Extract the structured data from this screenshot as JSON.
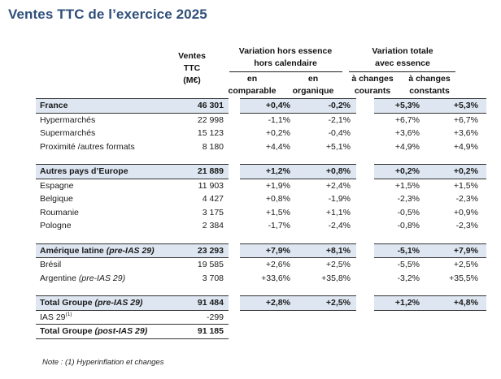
{
  "title": "Ventes TTC de l’exercice 2025",
  "header": {
    "sales_l1": "Ventes",
    "sales_l2": "TTC",
    "sales_l3": "(M€)",
    "group1_l1": "Variation hors essence",
    "group1_l2": "hors calendaire",
    "group2_l1": "Variation totale",
    "group2_l2": "avec essence",
    "col1_l1": "en",
    "col1_l2": "comparable",
    "col2_l1": "en",
    "col2_l2": "organique",
    "col3_l1": "à changes",
    "col3_l2": "courants",
    "col4_l1": "à changes",
    "col4_l2": "constants"
  },
  "rows": [
    {
      "label": "France",
      "label_note": "",
      "sales": "46 301",
      "v1": "+0,4%",
      "v2": "-0,2%",
      "v3": "+5,3%",
      "v4": "+5,3%"
    },
    {
      "label": "Hypermarchés",
      "label_note": "",
      "sales": "22 998",
      "v1": "-1,1%",
      "v2": "-2,1%",
      "v3": "+6,7%",
      "v4": "+6,7%"
    },
    {
      "label": "Supermarchés",
      "label_note": "",
      "sales": "15 123",
      "v1": "+0,2%",
      "v2": "-0,4%",
      "v3": "+3,6%",
      "v4": "+3,6%"
    },
    {
      "label": "Proximité /autres formats",
      "label_note": "",
      "sales": "8 180",
      "v1": "+4,4%",
      "v2": "+5,1%",
      "v3": "+4,9%",
      "v4": "+4,9%"
    },
    {
      "label": "Autres pays d’Europe",
      "label_note": "",
      "sales": "21 889",
      "v1": "+1,2%",
      "v2": "+0,8%",
      "v3": "+0,2%",
      "v4": "+0,2%"
    },
    {
      "label": "Espagne",
      "label_note": "",
      "sales": "11 903",
      "v1": "+1,9%",
      "v2": "+2,4%",
      "v3": "+1,5%",
      "v4": "+1,5%"
    },
    {
      "label": "Belgique",
      "label_note": "",
      "sales": "4 427",
      "v1": "+0,8%",
      "v2": "-1,9%",
      "v3": "-2,3%",
      "v4": "-2,3%"
    },
    {
      "label": "Roumanie",
      "label_note": "",
      "sales": "3 175",
      "v1": "+1,5%",
      "v2": "+1,1%",
      "v3": "-0,5%",
      "v4": "+0,9%"
    },
    {
      "label": "Pologne",
      "label_note": "",
      "sales": "2 384",
      "v1": "-1,7%",
      "v2": "-2,4%",
      "v3": "-0,8%",
      "v4": "-2,3%"
    },
    {
      "label": "Amérique latine ",
      "label_note": "(pre-IAS 29)",
      "sales": "23 293",
      "v1": "+7,9%",
      "v2": "+8,1%",
      "v3": "-5,1%",
      "v4": "+7,9%"
    },
    {
      "label": "Brésil",
      "label_note": "",
      "sales": "19 585",
      "v1": "+2,6%",
      "v2": "+2,5%",
      "v3": "-5,5%",
      "v4": "+2,5%"
    },
    {
      "label": "Argentine ",
      "label_note": "(pre-IAS 29)",
      "sales": "3 708",
      "v1": "+33,6%",
      "v2": "+35,8%",
      "v3": "-3,2%",
      "v4": "+35,5%"
    },
    {
      "label": "Total Groupe ",
      "label_note": "(pre-IAS 29)",
      "sales": "91 484",
      "v1": "+2,8%",
      "v2": "+2,5%",
      "v3": "+1,2%",
      "v4": "+4,8%"
    },
    {
      "label": "IAS 29",
      "label_note": "(1)",
      "sales": "-299"
    },
    {
      "label": "Total Groupe ",
      "label_note": "(post-IAS 29)",
      "sales": "91 185"
    }
  ],
  "note": "Note : (1) Hyperinflation et changes",
  "colors": {
    "title": "#2f4f7a",
    "band": "#dde6f1"
  }
}
